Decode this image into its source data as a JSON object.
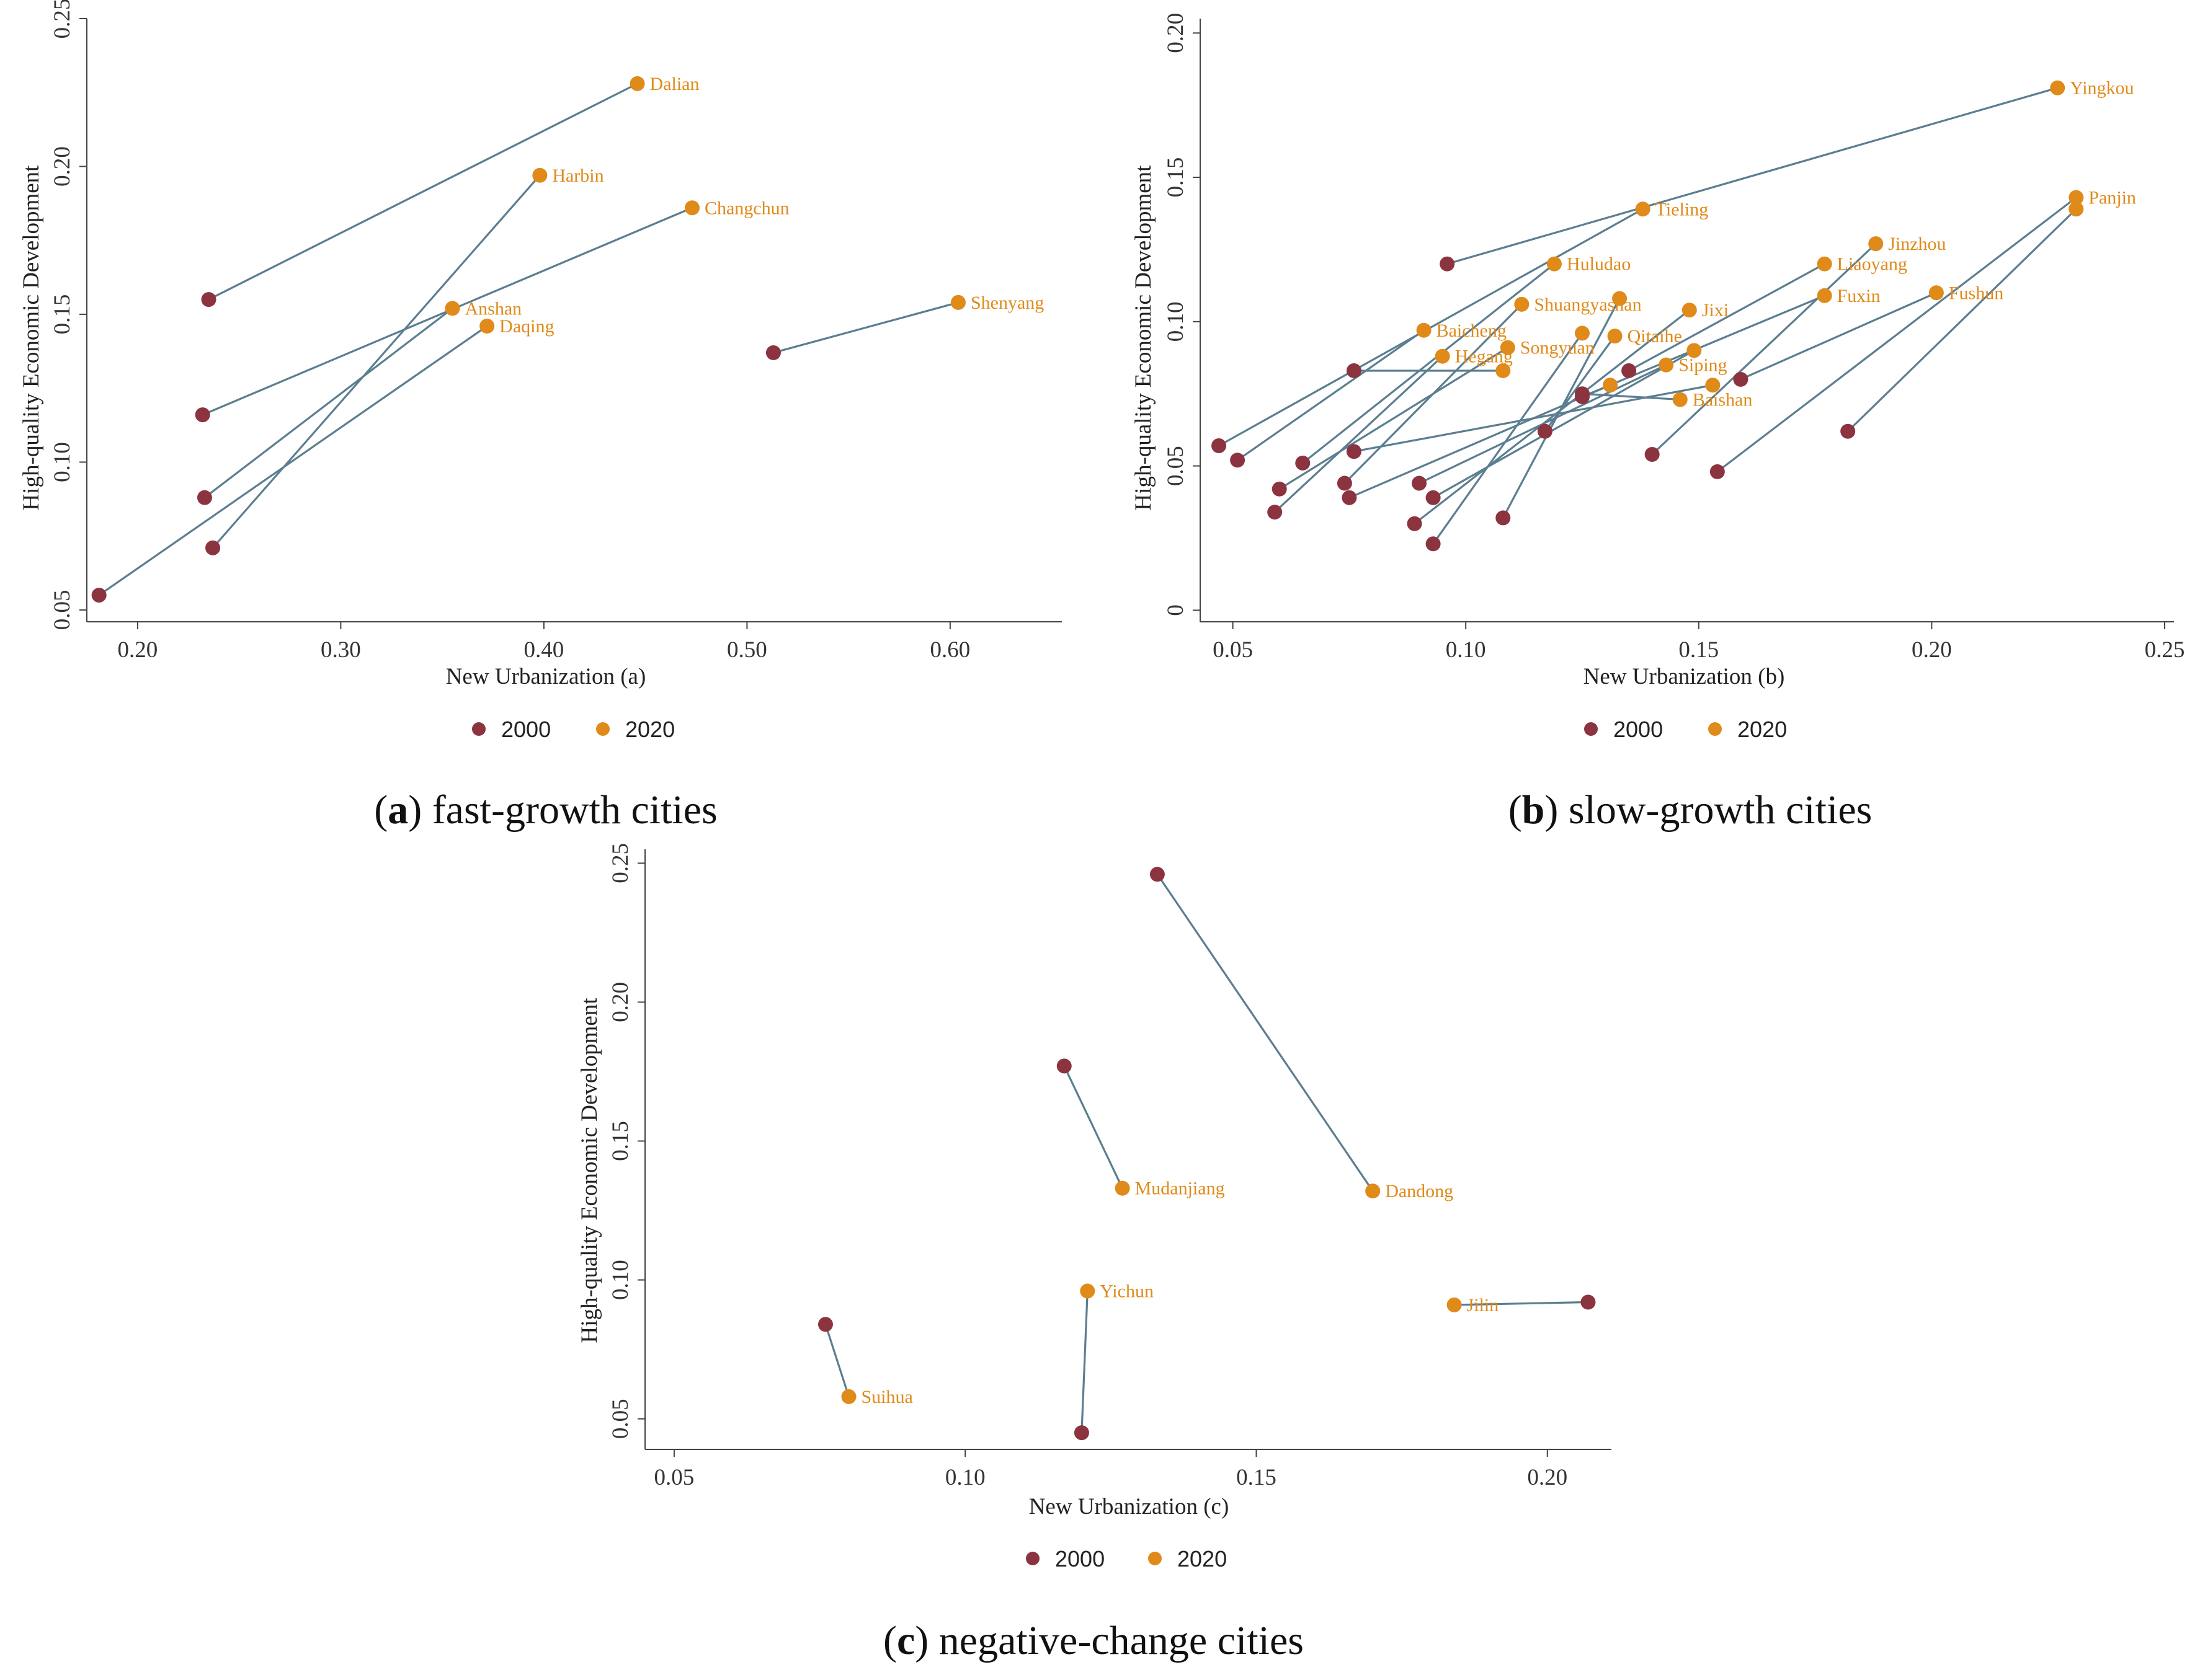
{
  "colors": {
    "y2000": "#8b3440",
    "y2020": "#e08a1a",
    "line": "#5b7e90",
    "axis": "#444444"
  },
  "chart_data": [
    {
      "id": "a",
      "type": "scatter",
      "subtitle_letter": "a",
      "subtitle_text": " fast-growth cities",
      "xlabel": "New Urbanization (a)",
      "ylabel": "High-quality Economic Development",
      "xlim": [
        0.175,
        0.655
      ],
      "ylim": [
        0.046,
        0.25
      ],
      "xticks": [
        0.2,
        0.3,
        0.4,
        0.5,
        0.6
      ],
      "yticks": [
        0.05,
        0.1,
        0.15,
        0.2,
        0.25
      ],
      "xtick_labels": [
        "0.20",
        "0.30",
        "0.40",
        "0.50",
        "0.60"
      ],
      "ytick_labels": [
        "0.05",
        "0.10",
        "0.15",
        "0.20",
        "0.25"
      ],
      "legend": [
        "2000",
        "2020"
      ],
      "cities": [
        {
          "name": "Dalian",
          "x2000": 0.235,
          "y2000": 0.155,
          "x2020": 0.446,
          "y2020": 0.228
        },
        {
          "name": "Harbin",
          "x2000": 0.237,
          "y2000": 0.071,
          "x2020": 0.398,
          "y2020": 0.197
        },
        {
          "name": "Changchun",
          "x2000": 0.232,
          "y2000": 0.116,
          "x2020": 0.473,
          "y2020": 0.186
        },
        {
          "name": "Anshan",
          "x2000": 0.233,
          "y2000": 0.088,
          "x2020": 0.355,
          "y2020": 0.152
        },
        {
          "name": "Daqing",
          "x2000": 0.181,
          "y2000": 0.055,
          "x2020": 0.372,
          "y2020": 0.146
        },
        {
          "name": "Shenyang",
          "x2000": 0.513,
          "y2000": 0.137,
          "x2020": 0.604,
          "y2020": 0.154
        }
      ]
    },
    {
      "id": "b",
      "type": "scatter",
      "subtitle_letter": "b",
      "subtitle_text": " slow-growth cities",
      "xlabel": "New Urbanization (b)",
      "ylabel": "High-quality Economic Development",
      "xlim": [
        0.043,
        0.252
      ],
      "ylim": [
        -0.004,
        0.205
      ],
      "xticks": [
        0.05,
        0.1,
        0.15,
        0.2,
        0.25
      ],
      "yticks": [
        0,
        0.05,
        0.1,
        0.15,
        0.2
      ],
      "xtick_labels": [
        "0.05",
        "0.10",
        "0.15",
        "0.20",
        "0.25"
      ],
      "ytick_labels": [
        "0",
        "0.05",
        "0.10",
        "0.15",
        "0.20"
      ],
      "legend": [
        "2000",
        "2020"
      ],
      "cities": [
        {
          "name": "Yingkou",
          "x2000": 0.096,
          "y2000": 0.12,
          "x2020": 0.227,
          "y2020": 0.181
        },
        {
          "name": "Panjin",
          "x2000": 0.154,
          "y2000": 0.048,
          "x2020": 0.231,
          "y2020": 0.143
        },
        {
          "name": "",
          "x2000": 0.182,
          "y2000": 0.062,
          "x2020": 0.231,
          "y2020": 0.139
        },
        {
          "name": "Tieling",
          "x2000": 0.047,
          "y2000": 0.057,
          "x2020": 0.138,
          "y2020": 0.139
        },
        {
          "name": "Huludao",
          "x2000": 0.065,
          "y2000": 0.051,
          "x2020": 0.119,
          "y2020": 0.12
        },
        {
          "name": "Liaoyang",
          "x2000": 0.135,
          "y2000": 0.083,
          "x2020": 0.177,
          "y2020": 0.12
        },
        {
          "name": "Jinzhou",
          "x2000": 0.14,
          "y2000": 0.054,
          "x2020": 0.188,
          "y2020": 0.127
        },
        {
          "name": "Shuangyashan",
          "x2000": 0.074,
          "y2000": 0.044,
          "x2020": 0.112,
          "y2020": 0.106
        },
        {
          "name": "",
          "x2000": 0.108,
          "y2000": 0.032,
          "x2020": 0.133,
          "y2020": 0.108
        },
        {
          "name": "Fuxin",
          "x2000": 0.125,
          "y2000": 0.074,
          "x2020": 0.177,
          "y2020": 0.109
        },
        {
          "name": "Fushun",
          "x2000": 0.159,
          "y2000": 0.08,
          "x2020": 0.201,
          "y2020": 0.11
        },
        {
          "name": "Jixi",
          "x2000": 0.089,
          "y2000": 0.03,
          "x2020": 0.148,
          "y2020": 0.104
        },
        {
          "name": "Baicheng",
          "x2000": 0.051,
          "y2000": 0.052,
          "x2020": 0.091,
          "y2020": 0.097
        },
        {
          "name": "",
          "x2000": 0.093,
          "y2000": 0.023,
          "x2020": 0.125,
          "y2020": 0.096
        },
        {
          "name": "Qitaihe",
          "x2000": 0.117,
          "y2000": 0.062,
          "x2020": 0.132,
          "y2020": 0.095
        },
        {
          "name": "Songyuan",
          "x2000": 0.06,
          "y2000": 0.042,
          "x2020": 0.109,
          "y2020": 0.091
        },
        {
          "name": "",
          "x2000": 0.093,
          "y2000": 0.039,
          "x2020": 0.149,
          "y2020": 0.09
        },
        {
          "name": "Hegang",
          "x2000": 0.059,
          "y2000": 0.034,
          "x2020": 0.095,
          "y2020": 0.088
        },
        {
          "name": "Siping",
          "x2000": 0.09,
          "y2000": 0.044,
          "x2020": 0.143,
          "y2020": 0.085
        },
        {
          "name": "",
          "x2000": 0.076,
          "y2000": 0.083,
          "x2020": 0.108,
          "y2020": 0.083
        },
        {
          "name": "",
          "x2000": 0.075,
          "y2000": 0.039,
          "x2020": 0.131,
          "y2020": 0.078
        },
        {
          "name": "",
          "x2000": 0.076,
          "y2000": 0.055,
          "x2020": 0.153,
          "y2020": 0.078
        },
        {
          "name": "Baishan",
          "x2000": 0.125,
          "y2000": 0.075,
          "x2020": 0.146,
          "y2020": 0.073
        }
      ]
    },
    {
      "id": "c",
      "type": "scatter",
      "subtitle_letter": "c",
      "subtitle_text": " negative-change cities",
      "xlabel": "New Urbanization (c)",
      "ylabel": "High-quality Economic Development",
      "xlim": [
        0.045,
        0.211
      ],
      "ylim": [
        0.039,
        0.255
      ],
      "xticks": [
        0.05,
        0.1,
        0.15,
        0.2
      ],
      "yticks": [
        0.05,
        0.1,
        0.15,
        0.2,
        0.25
      ],
      "xtick_labels": [
        "0.05",
        "0.10",
        "0.15",
        "0.20"
      ],
      "ytick_labels": [
        "0.05",
        "0.10",
        "0.15",
        "0.20",
        "0.25"
      ],
      "legend": [
        "2000",
        "2020"
      ],
      "cities": [
        {
          "name": "Dandong",
          "x2000": 0.133,
          "y2000": 0.246,
          "x2020": 0.17,
          "y2020": 0.132
        },
        {
          "name": "Mudanjiang",
          "x2000": 0.117,
          "y2000": 0.177,
          "x2020": 0.127,
          "y2020": 0.133
        },
        {
          "name": "Yichun",
          "x2000": 0.12,
          "y2000": 0.045,
          "x2020": 0.121,
          "y2020": 0.096
        },
        {
          "name": "Jilin",
          "x2000": 0.207,
          "y2000": 0.092,
          "x2020": 0.184,
          "y2020": 0.091
        },
        {
          "name": "Suihua",
          "x2000": 0.076,
          "y2000": 0.084,
          "x2020": 0.08,
          "y2020": 0.058
        }
      ]
    }
  ]
}
